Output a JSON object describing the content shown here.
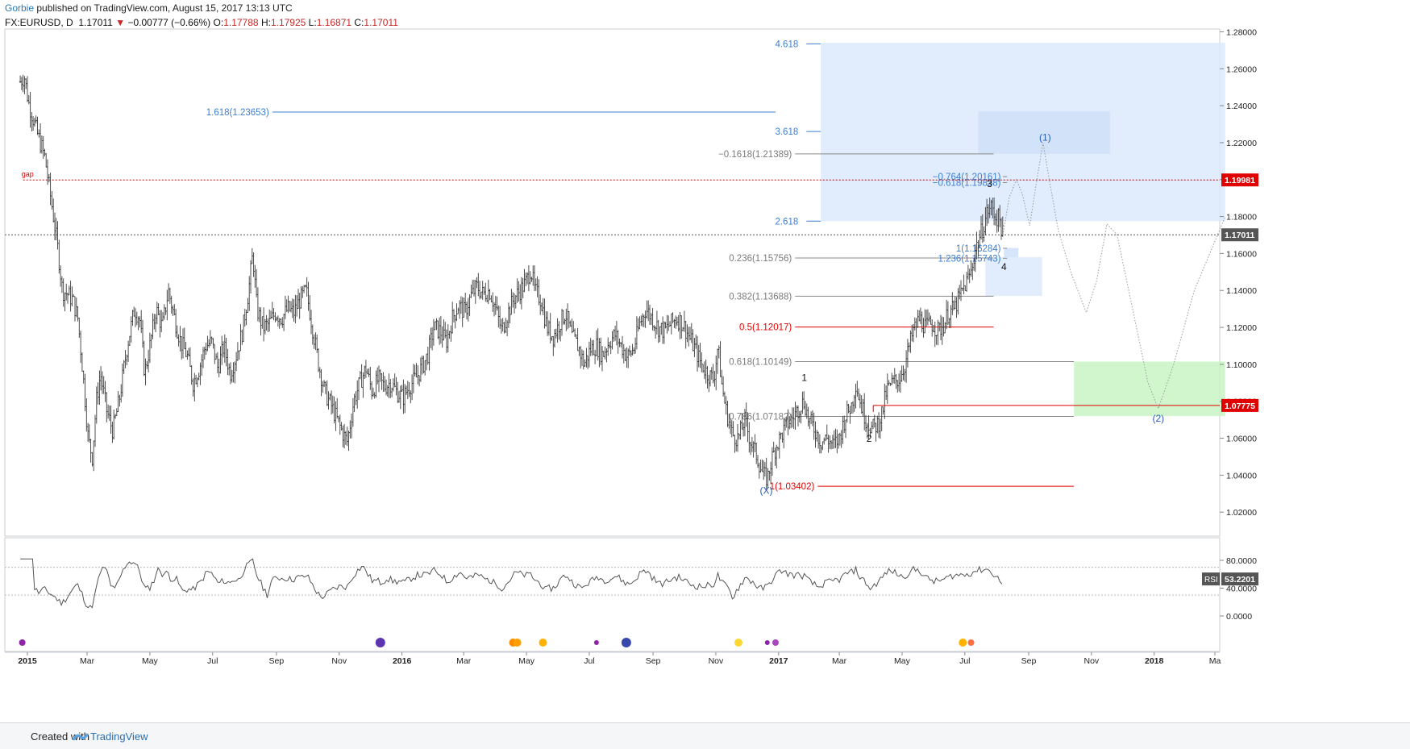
{
  "header": {
    "author": "Gorbie",
    "published": "published on TradingView.com, August 15, 2017 13:13 UTC"
  },
  "quote": {
    "symbol": "FX:EURUSD, D",
    "last": "1.17011",
    "change": "−0.00777 (−0.66%)",
    "o_label": "O:",
    "o": "1.17788",
    "h_label": "H:",
    "h": "1.17925",
    "l_label": "L:",
    "l": "1.16871",
    "c_label": "C:",
    "c": "1.17011"
  },
  "footer": {
    "created_with": "Created with",
    "brand": "TradingView"
  },
  "colors": {
    "blue_text": "#3d7fd0",
    "red": "#e00000",
    "grey_line": "#8a8a8a",
    "price_label_bg": "#555555",
    "box_blue": "#dce9fb",
    "box_green": "#c9f5c4"
  },
  "chart_data": {
    "type": "candlestick",
    "y_axis": {
      "ticks": [
        "1.28000",
        "1.26000",
        "1.24000",
        "1.22000",
        "1.20000",
        "1.18000",
        "1.16000",
        "1.14000",
        "1.12000",
        "1.10000",
        "1.08000",
        "1.06000",
        "1.04000",
        "1.02000"
      ],
      "range": [
        1.007,
        1.2815
      ]
    },
    "x_axis": {
      "ticks": [
        {
          "label": "2015",
          "d": 1
        },
        {
          "label": "Mar",
          "d": 59
        },
        {
          "label": "May",
          "d": 120
        },
        {
          "label": "Jul",
          "d": 181
        },
        {
          "label": "Sep",
          "d": 243
        },
        {
          "label": "Nov",
          "d": 304
        },
        {
          "label": "2016",
          "d": 365
        },
        {
          "label": "Mar",
          "d": 425
        },
        {
          "label": "May",
          "d": 486
        },
        {
          "label": "Jul",
          "d": 547
        },
        {
          "label": "Sep",
          "d": 609
        },
        {
          "label": "Nov",
          "d": 670
        },
        {
          "label": "2017",
          "d": 731
        },
        {
          "label": "Mar",
          "d": 790
        },
        {
          "label": "May",
          "d": 851
        },
        {
          "label": "Jul",
          "d": 912
        },
        {
          "label": "Sep",
          "d": 974
        },
        {
          "label": "Nov",
          "d": 1035
        },
        {
          "label": "2018",
          "d": 1096
        },
        {
          "label": "Ma",
          "d": 1155
        }
      ]
    },
    "price_path": [
      [
        -6,
        1.253
      ],
      [
        -2,
        1.256
      ],
      [
        2,
        1.242
      ],
      [
        10,
        1.226
      ],
      [
        18,
        1.212
      ],
      [
        25,
        1.185
      ],
      [
        30,
        1.165
      ],
      [
        35,
        1.14
      ],
      [
        40,
        1.138
      ],
      [
        45,
        1.135
      ],
      [
        50,
        1.125
      ],
      [
        55,
        1.095
      ],
      [
        60,
        1.06
      ],
      [
        64,
        1.05
      ],
      [
        68,
        1.08
      ],
      [
        72,
        1.095
      ],
      [
        78,
        1.075
      ],
      [
        84,
        1.064
      ],
      [
        90,
        1.08
      ],
      [
        98,
        1.11
      ],
      [
        105,
        1.13
      ],
      [
        110,
        1.125
      ],
      [
        115,
        1.095
      ],
      [
        120,
        1.11
      ],
      [
        126,
        1.13
      ],
      [
        132,
        1.12
      ],
      [
        138,
        1.14
      ],
      [
        144,
        1.125
      ],
      [
        150,
        1.112
      ],
      [
        156,
        1.105
      ],
      [
        162,
        1.09
      ],
      [
        168,
        1.098
      ],
      [
        174,
        1.11
      ],
      [
        180,
        1.112
      ],
      [
        186,
        1.098
      ],
      [
        192,
        1.11
      ],
      [
        198,
        1.095
      ],
      [
        204,
        1.105
      ],
      [
        210,
        1.118
      ],
      [
        216,
        1.14
      ],
      [
        220,
        1.16
      ],
      [
        224,
        1.13
      ],
      [
        230,
        1.12
      ],
      [
        236,
        1.122
      ],
      [
        242,
        1.128
      ],
      [
        248,
        1.125
      ],
      [
        254,
        1.13
      ],
      [
        260,
        1.128
      ],
      [
        266,
        1.135
      ],
      [
        272,
        1.14
      ],
      [
        278,
        1.12
      ],
      [
        284,
        1.1
      ],
      [
        290,
        1.085
      ],
      [
        296,
        1.078
      ],
      [
        302,
        1.07
      ],
      [
        308,
        1.062
      ],
      [
        312,
        1.058
      ],
      [
        318,
        1.08
      ],
      [
        324,
        1.09
      ],
      [
        330,
        1.098
      ],
      [
        336,
        1.085
      ],
      [
        342,
        1.092
      ],
      [
        348,
        1.088
      ],
      [
        354,
        1.09
      ],
      [
        360,
        1.085
      ],
      [
        366,
        1.082
      ],
      [
        372,
        1.088
      ],
      [
        378,
        1.092
      ],
      [
        384,
        1.098
      ],
      [
        390,
        1.105
      ],
      [
        396,
        1.12
      ],
      [
        402,
        1.118
      ],
      [
        408,
        1.112
      ],
      [
        414,
        1.125
      ],
      [
        420,
        1.132
      ],
      [
        426,
        1.128
      ],
      [
        432,
        1.137
      ],
      [
        438,
        1.142
      ],
      [
        444,
        1.138
      ],
      [
        450,
        1.14
      ],
      [
        456,
        1.13
      ],
      [
        462,
        1.118
      ],
      [
        468,
        1.128
      ],
      [
        474,
        1.136
      ],
      [
        480,
        1.14
      ],
      [
        486,
        1.145
      ],
      [
        490,
        1.152
      ],
      [
        494,
        1.14
      ],
      [
        500,
        1.135
      ],
      [
        506,
        1.12
      ],
      [
        512,
        1.115
      ],
      [
        518,
        1.122
      ],
      [
        524,
        1.128
      ],
      [
        530,
        1.115
      ],
      [
        536,
        1.11
      ],
      [
        542,
        1.1
      ],
      [
        548,
        1.108
      ],
      [
        554,
        1.11
      ],
      [
        560,
        1.105
      ],
      [
        566,
        1.112
      ],
      [
        572,
        1.116
      ],
      [
        578,
        1.11
      ],
      [
        584,
        1.104
      ],
      [
        590,
        1.108
      ],
      [
        596,
        1.122
      ],
      [
        602,
        1.13
      ],
      [
        608,
        1.125
      ],
      [
        614,
        1.12
      ],
      [
        620,
        1.118
      ],
      [
        626,
        1.122
      ],
      [
        632,
        1.125
      ],
      [
        638,
        1.122
      ],
      [
        644,
        1.115
      ],
      [
        650,
        1.108
      ],
      [
        656,
        1.1
      ],
      [
        662,
        1.095
      ],
      [
        668,
        1.092
      ],
      [
        672,
        1.11
      ],
      [
        676,
        1.088
      ],
      [
        680,
        1.075
      ],
      [
        686,
        1.062
      ],
      [
        692,
        1.06
      ],
      [
        698,
        1.07
      ],
      [
        704,
        1.058
      ],
      [
        710,
        1.05
      ],
      [
        716,
        1.04
      ],
      [
        720,
        1.038
      ],
      [
        724,
        1.048
      ],
      [
        728,
        1.055
      ],
      [
        734,
        1.062
      ],
      [
        740,
        1.068
      ],
      [
        746,
        1.072
      ],
      [
        752,
        1.078
      ],
      [
        756,
        1.08
      ],
      [
        760,
        1.07
      ],
      [
        766,
        1.065
      ],
      [
        772,
        1.058
      ],
      [
        778,
        1.06
      ],
      [
        784,
        1.056
      ],
      [
        790,
        1.06
      ],
      [
        796,
        1.072
      ],
      [
        802,
        1.078
      ],
      [
        806,
        1.09
      ],
      [
        810,
        1.08
      ],
      [
        816,
        1.07
      ],
      [
        822,
        1.065
      ],
      [
        828,
        1.068
      ],
      [
        832,
        1.075
      ],
      [
        836,
        1.086
      ],
      [
        842,
        1.09
      ],
      [
        848,
        1.092
      ],
      [
        854,
        1.1
      ],
      [
        858,
        1.11
      ],
      [
        862,
        1.118
      ],
      [
        868,
        1.125
      ],
      [
        874,
        1.12
      ],
      [
        880,
        1.122
      ],
      [
        886,
        1.118
      ],
      [
        892,
        1.122
      ],
      [
        896,
        1.128
      ],
      [
        902,
        1.13
      ],
      [
        908,
        1.138
      ],
      [
        914,
        1.145
      ],
      [
        918,
        1.15
      ],
      [
        922,
        1.162
      ],
      [
        926,
        1.168
      ],
      [
        930,
        1.175
      ],
      [
        934,
        1.183
      ],
      [
        938,
        1.185
      ],
      [
        942,
        1.18
      ],
      [
        946,
        1.178
      ],
      [
        949,
        1.17
      ]
    ],
    "projection_path": [
      [
        949,
        1.17
      ],
      [
        955,
        1.19
      ],
      [
        962,
        1.2
      ],
      [
        968,
        1.192
      ],
      [
        975,
        1.175
      ],
      [
        982,
        1.2
      ],
      [
        988,
        1.22
      ],
      [
        994,
        1.2
      ],
      [
        1003,
        1.172
      ],
      [
        1015,
        1.15
      ],
      [
        1030,
        1.128
      ],
      [
        1040,
        1.145
      ],
      [
        1050,
        1.176
      ],
      [
        1060,
        1.17
      ],
      [
        1075,
        1.13
      ],
      [
        1090,
        1.09
      ],
      [
        1100,
        1.076
      ],
      [
        1115,
        1.1
      ],
      [
        1135,
        1.14
      ],
      [
        1165,
        1.18
      ]
    ],
    "wave_labels": [
      {
        "text": "(1)",
        "d": 990,
        "y": 1.221,
        "color": "blue"
      },
      {
        "text": "(2)",
        "d": 1100,
        "y": 1.069,
        "color": "blue"
      },
      {
        "text": "(X)",
        "d": 719,
        "y": 1.03,
        "color": "blue"
      },
      {
        "text": "1",
        "d": 756,
        "y": 1.091,
        "color": "black"
      },
      {
        "text": "2",
        "d": 819,
        "y": 1.058,
        "color": "black"
      },
      {
        "text": "3",
        "d": 936,
        "y": 1.196,
        "color": "black"
      },
      {
        "text": "4",
        "d": 950,
        "y": 1.151,
        "color": "black"
      }
    ],
    "extensions": [
      {
        "text": "4.618",
        "y": 1.2735,
        "from_d": 758,
        "to_d": 772
      },
      {
        "text": "3.618",
        "y": 1.226,
        "from_d": 758,
        "to_d": 772
      },
      {
        "text": "2.618",
        "y": 1.1775,
        "from_d": 758,
        "to_d": 772
      }
    ],
    "long_fib": {
      "text": "1.618(1.23653)",
      "y": 1.23653,
      "from_d": 239,
      "to_d": 728
    },
    "retracements": [
      {
        "text": "−0.1618(1.21389)",
        "y": 1.21389,
        "from_d": 700,
        "to_d": 940,
        "color": "grey"
      },
      {
        "text": "0.236(1.15756)",
        "y": 1.15756,
        "from_d": 700,
        "to_d": 940,
        "color": "grey"
      },
      {
        "text": "0.382(1.13688)",
        "y": 1.13688,
        "from_d": 700,
        "to_d": 940,
        "color": "grey"
      },
      {
        "text": "0.5(1.12017)",
        "y": 1.12017,
        "from_d": 700,
        "to_d": 940,
        "color": "red"
      },
      {
        "text": "0.618(1.10149)",
        "y": 1.10149,
        "from_d": 700,
        "to_d": 1018,
        "color": "grey"
      },
      {
        "text": "0.786(1.07182)",
        "y": 1.07182,
        "from_d": 700,
        "to_d": 1018,
        "color": "grey"
      },
      {
        "text": "1(1.03402)",
        "y": 1.03402,
        "from_d": 722,
        "to_d": 1018,
        "color": "red"
      }
    ],
    "small_fibs": [
      {
        "text": "−0.764(1.20161)",
        "y": 1.20161
      },
      {
        "text": "−0.618(1.19838)",
        "y": 1.19838
      },
      {
        "text": "1(1.16284)",
        "y": 1.16284
      },
      {
        "text": "1.236(1.15743)",
        "y": 1.15743
      }
    ],
    "gap_line": {
      "text": "gap",
      "y": 1.19981,
      "from_d": 0
    },
    "current_line": {
      "y": 1.17011
    },
    "support_line": {
      "y": 1.07775,
      "from_d": 823
    },
    "boxes": [
      {
        "name": "big-target",
        "d0": 772,
        "d1": 1165,
        "y0": 1.1775,
        "y1": 1.274,
        "color": "blue"
      },
      {
        "name": "wave1-target",
        "d0": 925,
        "d1": 1053,
        "y0": 1.214,
        "y1": 1.237,
        "color": "blue2"
      },
      {
        "name": "wave4-zone",
        "d0": 932,
        "d1": 987,
        "y0": 1.137,
        "y1": 1.158,
        "color": "blue"
      },
      {
        "name": "wave4-small",
        "d0": 950,
        "d1": 964,
        "y0": 1.158,
        "y1": 1.163,
        "color": "blue2"
      },
      {
        "name": "wave2-target",
        "d0": 1018,
        "d1": 1165,
        "y0": 1.072,
        "y1": 1.1015,
        "color": "green"
      }
    ],
    "price_labels": [
      {
        "text": "1.19981",
        "y": 1.19981,
        "color": "red"
      },
      {
        "text": "1.17011",
        "y": 1.17011,
        "color": "grey"
      },
      {
        "text": "1.07775",
        "y": 1.07775,
        "color": "red"
      }
    ],
    "rsi": {
      "label": "RSI",
      "value": "53.2201",
      "ticks": [
        "80.0000",
        "40.0000",
        "0.0000"
      ],
      "range": [
        0,
        100
      ],
      "levels": [
        70,
        30
      ]
    },
    "event_dots": [
      {
        "d": -4,
        "color": "#8e24aa",
        "r": 4
      },
      {
        "d": 344,
        "color": "#5e35b1",
        "r": 6
      },
      {
        "d": 473,
        "color": "#ff8f00",
        "r": 5
      },
      {
        "d": 477,
        "color": "#ffa000",
        "r": 5
      },
      {
        "d": 502,
        "color": "#ffb300",
        "r": 5
      },
      {
        "d": 554,
        "color": "#8e24aa",
        "r": 3
      },
      {
        "d": 583,
        "color": "#3949ab",
        "r": 6
      },
      {
        "d": 692,
        "color": "#fdd835",
        "r": 5
      },
      {
        "d": 720,
        "color": "#8e24aa",
        "r": 3
      },
      {
        "d": 728,
        "color": "#ab47bc",
        "r": 4
      },
      {
        "d": 910,
        "color": "#ffb300",
        "r": 5
      },
      {
        "d": 918,
        "color": "#ff7043",
        "r": 4
      }
    ]
  }
}
